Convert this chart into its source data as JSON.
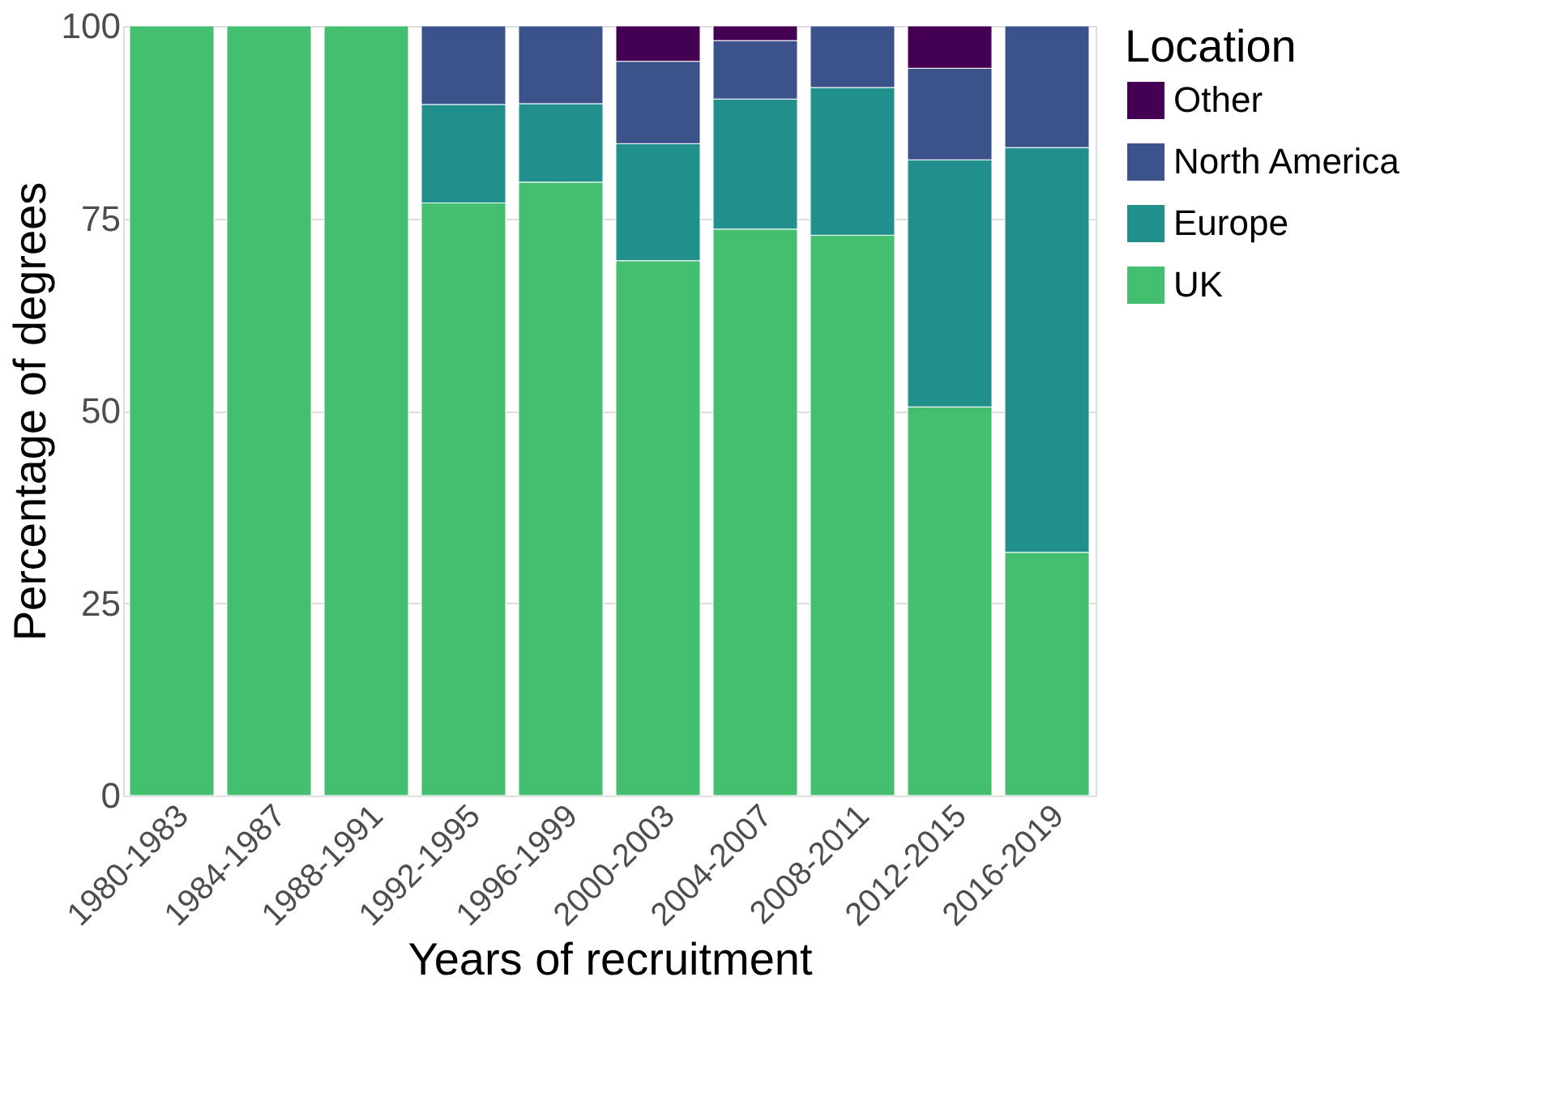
{
  "chart_data": {
    "type": "bar",
    "stacked": true,
    "xlabel": "Years of recruitment",
    "ylabel": "Percentage of degrees",
    "legend_title": "Location",
    "legend": "right",
    "grid": true,
    "categories": [
      "1980-1983",
      "1984-1987",
      "1988-1991",
      "1992-1995",
      "1996-1999",
      "2000-2003",
      "2004-2007",
      "2008-2011",
      "2012-2015",
      "2016-2019"
    ],
    "ylim": [
      0,
      100
    ],
    "yticks": [
      0,
      25,
      50,
      75,
      100
    ],
    "series": [
      {
        "name": "UK",
        "color": "#44bf70",
        "values": [
          100,
          100,
          100,
          77,
          79.7,
          69.5,
          73.6,
          72.8,
          50.5,
          31.6
        ]
      },
      {
        "name": "Europe",
        "color": "#21908c",
        "values": [
          null,
          null,
          null,
          12.8,
          10.2,
          15.2,
          16.9,
          19.2,
          32.1,
          52.6
        ]
      },
      {
        "name": "North America",
        "color": "#3b528b",
        "values": [
          null,
          null,
          null,
          10.2,
          10.1,
          10.7,
          7.6,
          8,
          11.9,
          15.8
        ]
      },
      {
        "name": "Other",
        "color": "#440154",
        "values": [
          null,
          null,
          null,
          null,
          null,
          4.6,
          1.9,
          null,
          5.5,
          null
        ]
      }
    ]
  }
}
